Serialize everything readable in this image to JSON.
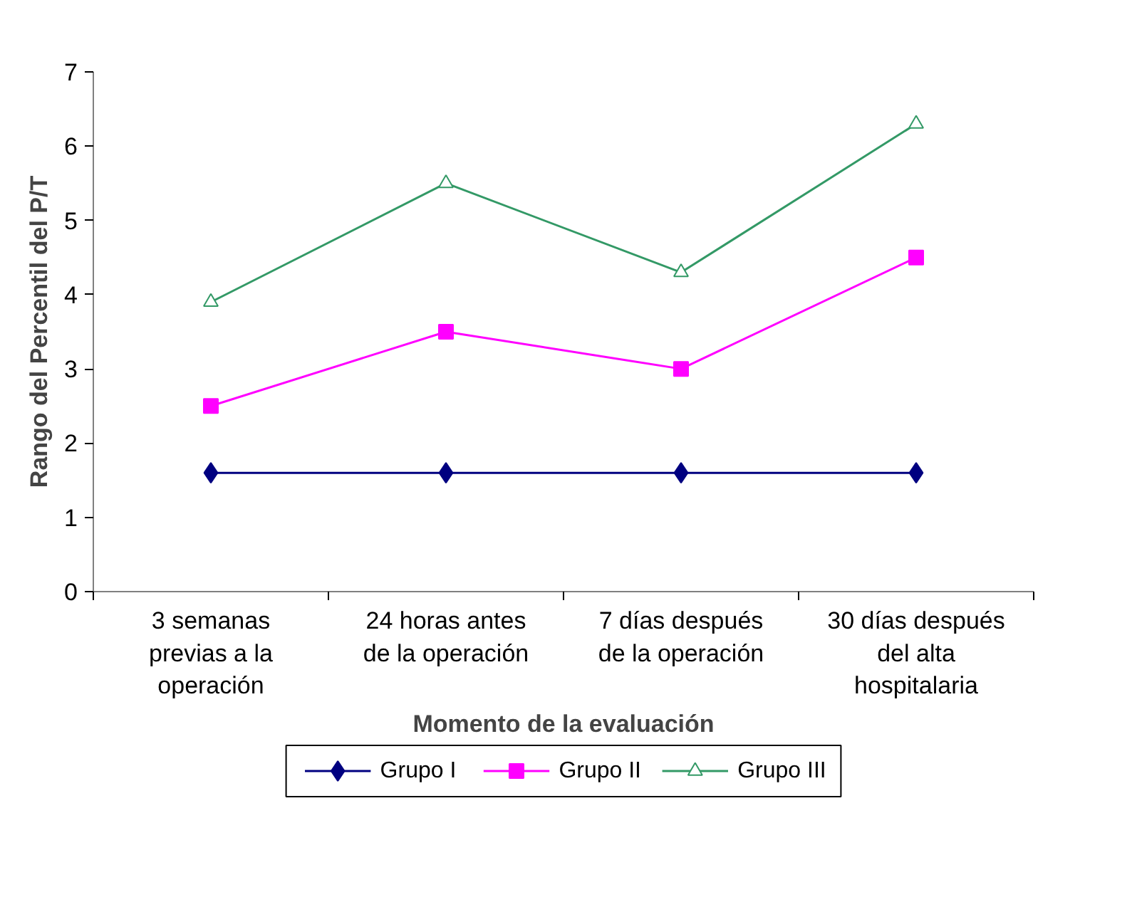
{
  "chart_data": {
    "type": "line",
    "xlabel": "Momento de la evaluación",
    "ylabel": "Rango del Percentil del P/T",
    "categories": [
      "3 semanas\nprevias a la\noperación",
      "24 horas antes\nde la operación",
      "7 días después\nde la operación",
      "30 días después\ndel alta\nhospitalaria"
    ],
    "series": [
      {
        "name": "Grupo I",
        "color": "#000080",
        "marker": "diamond",
        "values": [
          1.6,
          1.6,
          1.6,
          1.6
        ]
      },
      {
        "name": "Grupo II",
        "color": "#ff00ff",
        "marker": "square",
        "values": [
          2.5,
          3.5,
          3.0,
          4.5
        ]
      },
      {
        "name": "Grupo III",
        "color": "#339966",
        "marker": "triangle",
        "values": [
          3.9,
          5.5,
          4.3,
          6.3
        ]
      }
    ],
    "ylim": [
      0,
      7
    ],
    "yticks": [
      0,
      1,
      2,
      3,
      4,
      5,
      6,
      7
    ],
    "grid": false,
    "legend": "bottom",
    "line_style": "solid"
  }
}
